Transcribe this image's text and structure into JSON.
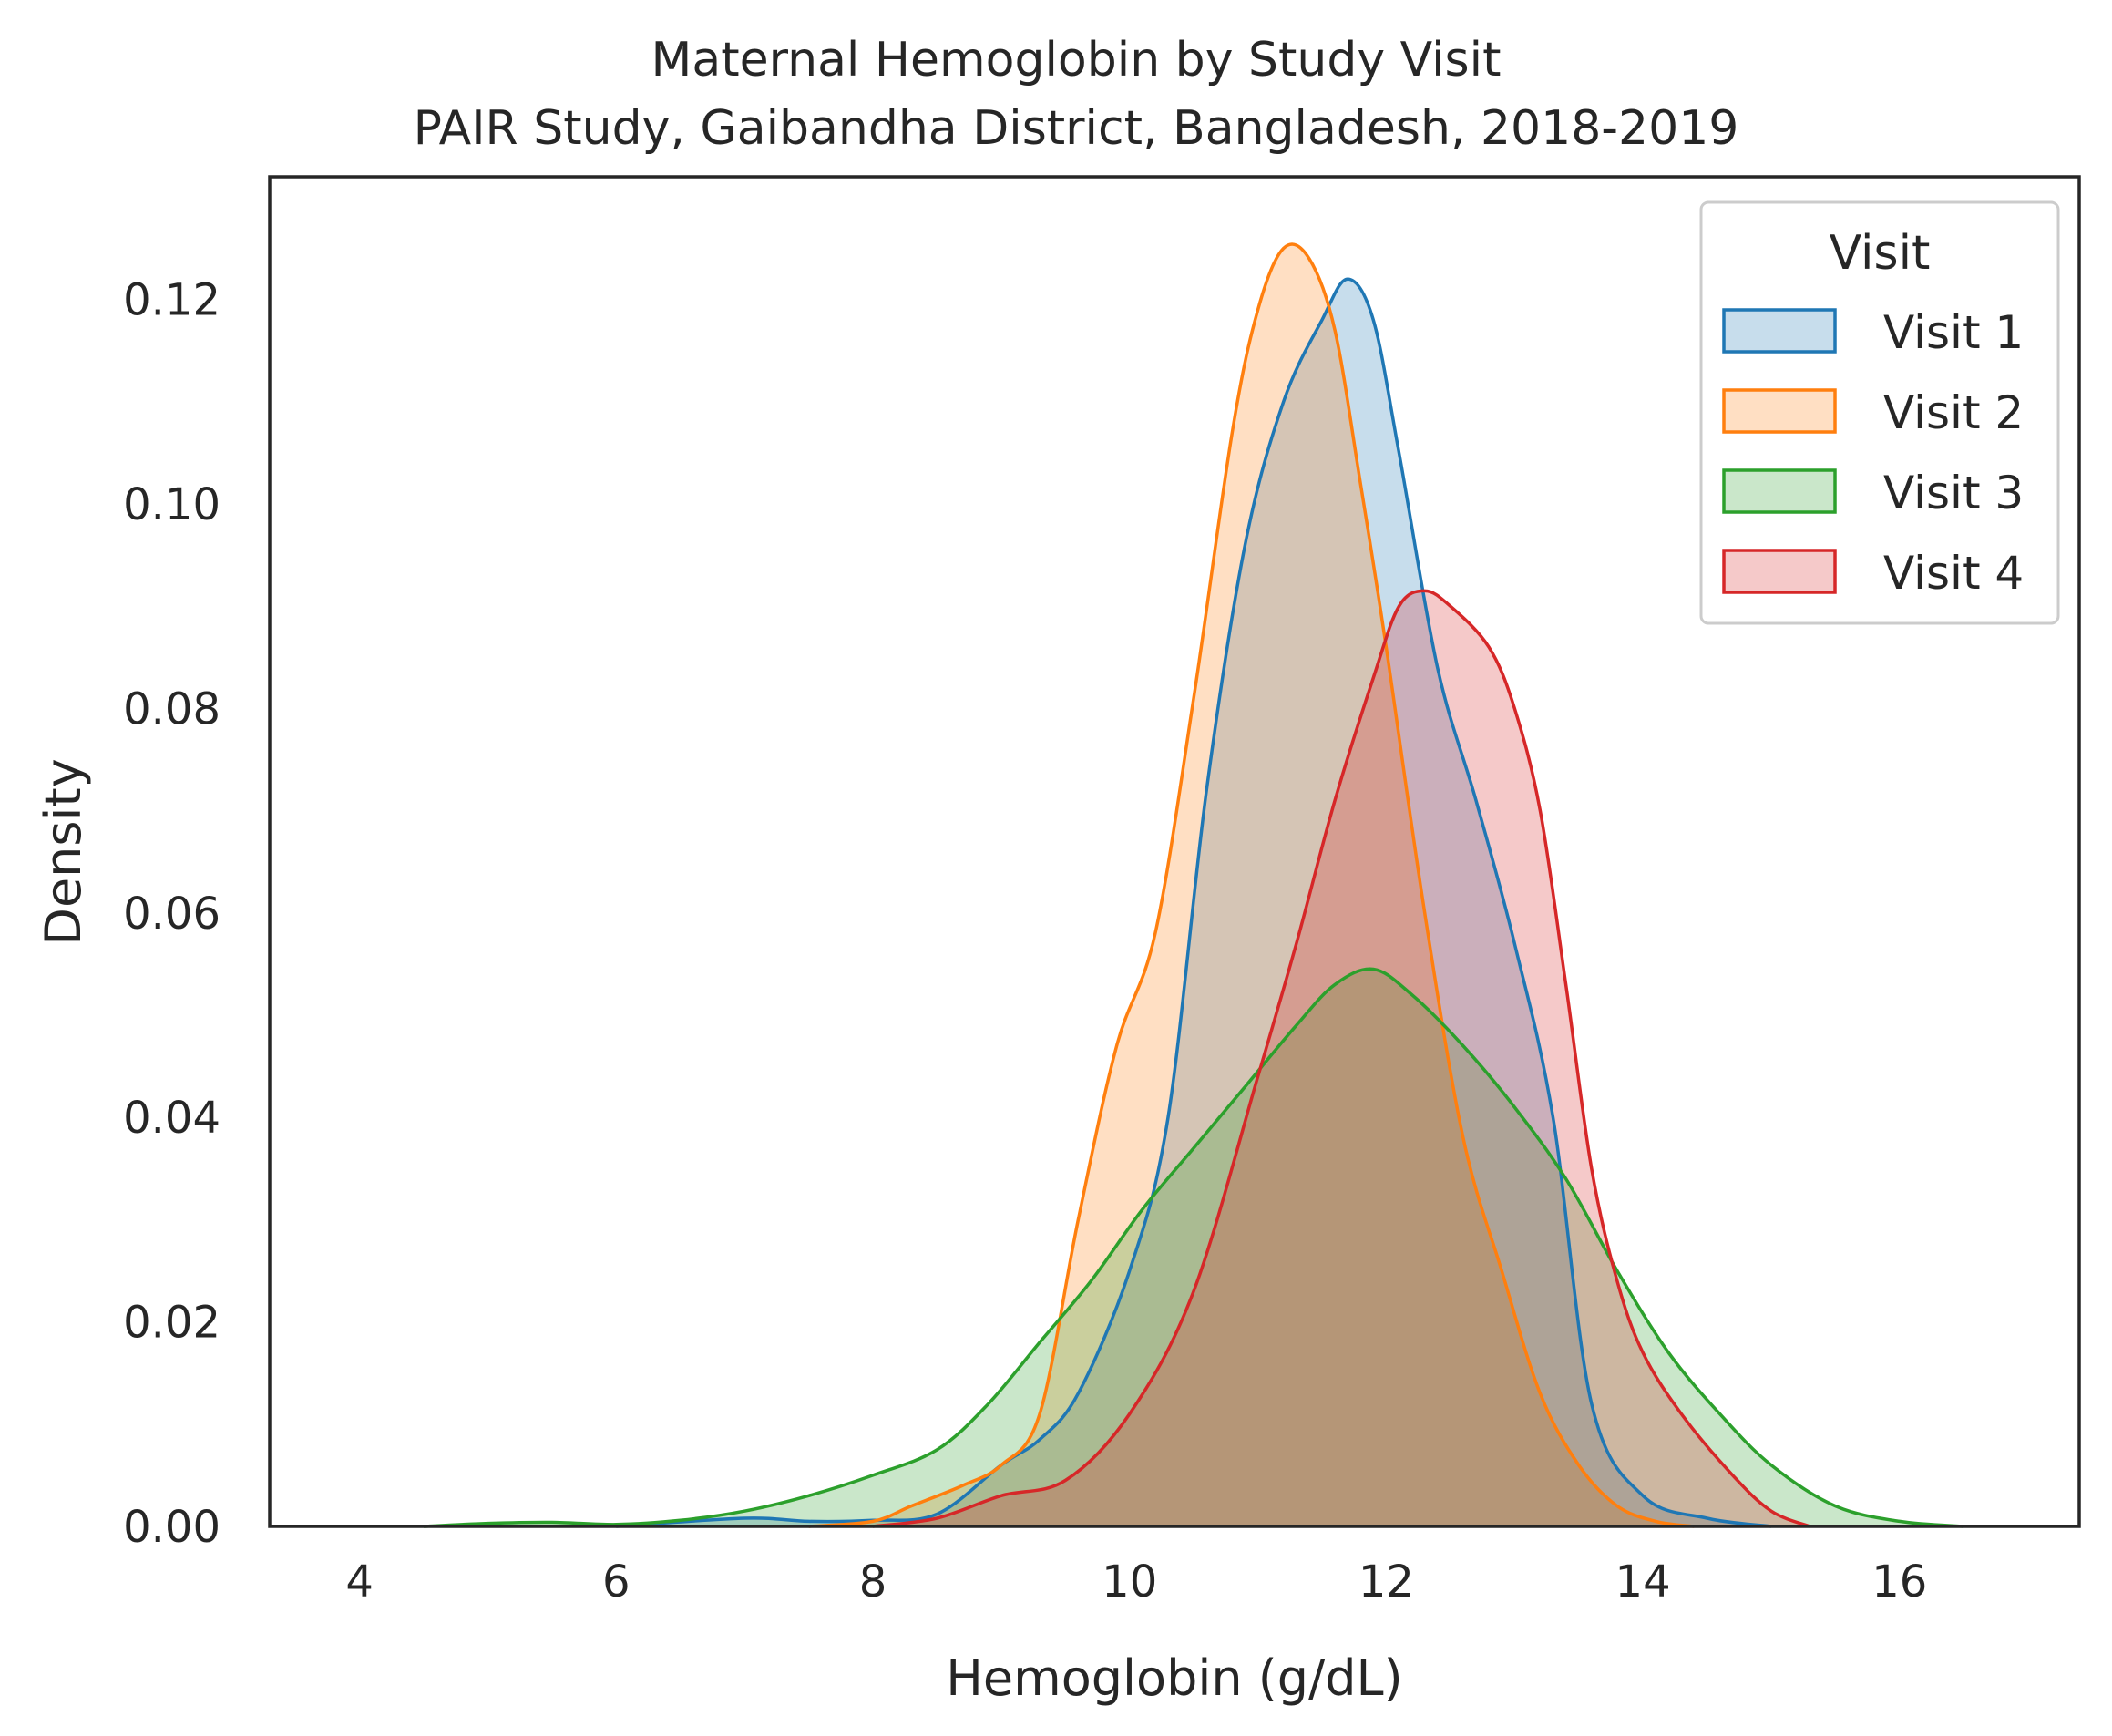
{
  "chart_data": {
    "type": "area",
    "title": "Maternal Hemoglobin by Study Visit",
    "subtitle": "PAIR Study, Gaibandha District, Bangladesh, 2018-2019",
    "xlabel": "Hemoglobin (g/dL)",
    "ylabel": "Density",
    "xlim": [
      3.3,
      17.4
    ],
    "ylim": [
      0,
      0.132
    ],
    "xticks": [
      4,
      6,
      8,
      10,
      12,
      14,
      16
    ],
    "yticks": [
      0.0,
      0.02,
      0.04,
      0.06,
      0.08,
      0.1,
      0.12
    ],
    "ytick_labels": [
      "0.00",
      "0.02",
      "0.04",
      "0.06",
      "0.08",
      "0.10",
      "0.12"
    ],
    "grid": false,
    "legend": {
      "title": "Visit",
      "placement": "top-right"
    },
    "series": [
      {
        "name": "Visit 1",
        "color": "#1f77b4",
        "x": [
          6.0,
          7.0,
          7.5,
          8.0,
          8.5,
          9.0,
          9.3,
          9.6,
          10.0,
          10.3,
          10.6,
          10.9,
          11.2,
          11.5,
          11.7,
          11.9,
          12.1,
          12.4,
          12.7,
          13.0,
          13.3,
          13.6,
          14.0,
          14.5,
          15.0
        ],
        "y": [
          0.0,
          0.0008,
          0.0005,
          0.0006,
          0.0012,
          0.006,
          0.0085,
          0.013,
          0.025,
          0.04,
          0.072,
          0.096,
          0.11,
          0.118,
          0.122,
          0.118,
          0.105,
          0.084,
          0.071,
          0.057,
          0.04,
          0.012,
          0.003,
          0.0008,
          0.0
        ]
      },
      {
        "name": "Visit 2",
        "color": "#ff7f0e",
        "x": [
          7.5,
          8.0,
          8.3,
          8.7,
          9.0,
          9.3,
          9.6,
          9.9,
          10.2,
          10.5,
          10.8,
          11.0,
          11.2,
          11.4,
          11.6,
          11.8,
          12.0,
          12.3,
          12.6,
          12.9,
          13.2,
          13.5,
          13.8,
          14.1,
          14.4
        ],
        "y": [
          0.0,
          0.0005,
          0.002,
          0.004,
          0.006,
          0.011,
          0.03,
          0.047,
          0.058,
          0.081,
          0.107,
          0.119,
          0.125,
          0.124,
          0.117,
          0.102,
          0.086,
          0.06,
          0.038,
          0.025,
          0.013,
          0.006,
          0.002,
          0.0005,
          0.0
        ]
      },
      {
        "name": "Visit 3",
        "color": "#2ca02c",
        "x": [
          4.5,
          5.0,
          5.5,
          6.0,
          6.5,
          7.0,
          7.5,
          8.0,
          8.5,
          8.9,
          9.3,
          9.7,
          10.1,
          10.5,
          10.9,
          11.3,
          11.6,
          11.9,
          12.2,
          12.6,
          13.0,
          13.4,
          13.8,
          14.2,
          14.6,
          15.0,
          15.5,
          16.0,
          16.5
        ],
        "y": [
          0.0,
          0.0003,
          0.0004,
          0.0002,
          0.0006,
          0.0015,
          0.003,
          0.005,
          0.0075,
          0.012,
          0.018,
          0.024,
          0.031,
          0.037,
          0.043,
          0.049,
          0.053,
          0.0545,
          0.052,
          0.047,
          0.041,
          0.034,
          0.025,
          0.017,
          0.011,
          0.006,
          0.002,
          0.0005,
          0.0
        ]
      },
      {
        "name": "Visit 4",
        "color": "#d62728",
        "x": [
          8.0,
          8.5,
          9.0,
          9.5,
          10.0,
          10.5,
          11.0,
          11.3,
          11.6,
          11.9,
          12.1,
          12.3,
          12.5,
          12.8,
          13.0,
          13.2,
          13.4,
          13.6,
          13.8,
          14.0,
          14.3,
          14.7,
          15.0,
          15.3
        ],
        "y": [
          0.0,
          0.0008,
          0.003,
          0.0045,
          0.011,
          0.023,
          0.044,
          0.057,
          0.071,
          0.083,
          0.09,
          0.0915,
          0.09,
          0.086,
          0.08,
          0.07,
          0.053,
          0.035,
          0.024,
          0.017,
          0.011,
          0.005,
          0.0015,
          0.0
        ]
      }
    ]
  }
}
